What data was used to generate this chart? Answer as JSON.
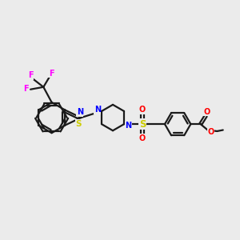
{
  "bg_color": "#ebebeb",
  "bond_color": "#1a1a1a",
  "N_color": "#0000ff",
  "S_color": "#cccc00",
  "O_color": "#ff0000",
  "F_color": "#ff00ff",
  "figsize": [
    3.0,
    3.0
  ],
  "dpi": 100,
  "lw": 1.6,
  "xlim": [
    0,
    10
  ],
  "ylim": [
    0,
    10
  ]
}
